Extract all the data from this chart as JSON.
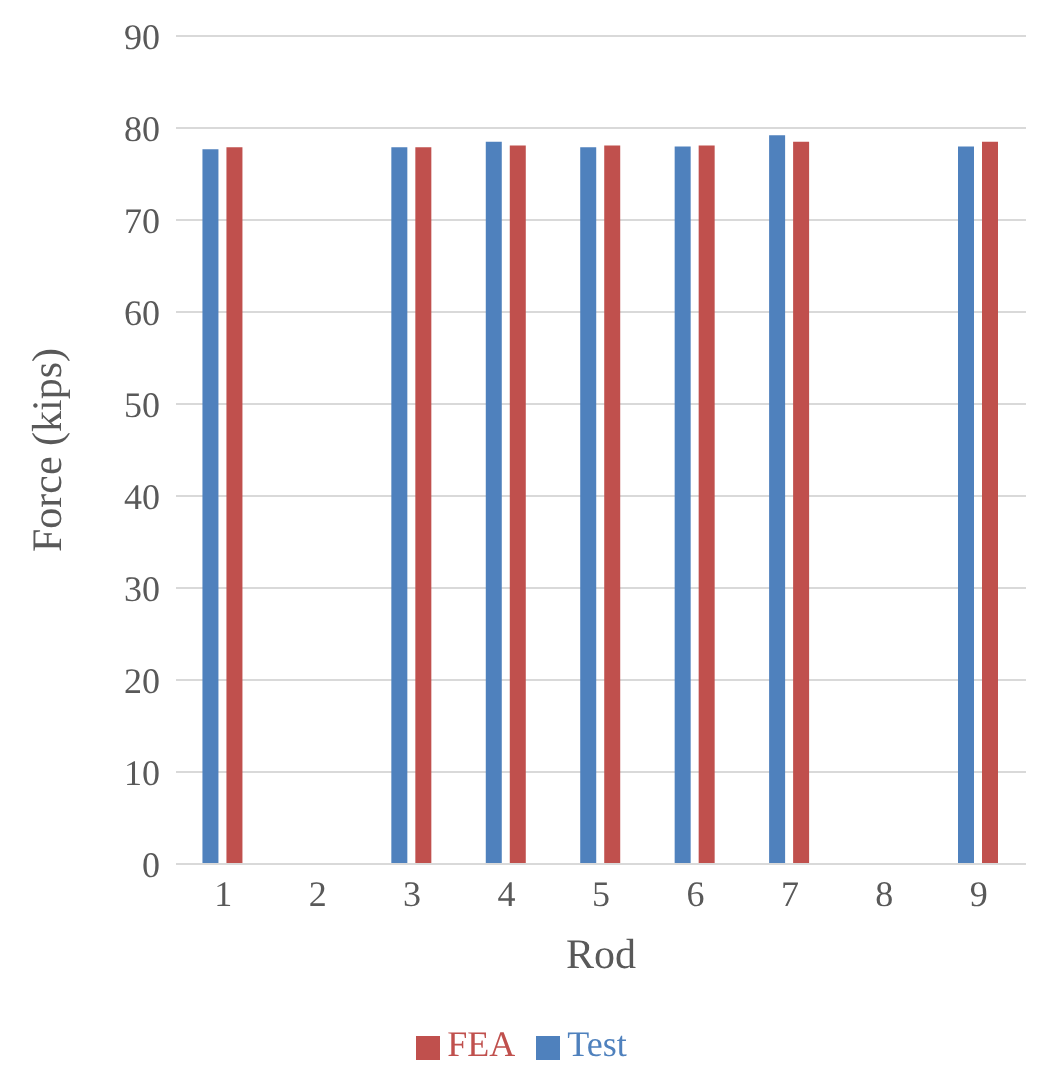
{
  "chart_data": {
    "type": "bar",
    "xlabel": "Rod",
    "ylabel": "Force (kips)",
    "categories": [
      "1",
      "2",
      "3",
      "4",
      "5",
      "6",
      "7",
      "8",
      "9"
    ],
    "series": [
      {
        "name": "Test",
        "color": "#4f81bd",
        "values": [
          77.7,
          null,
          77.9,
          78.5,
          77.9,
          78.0,
          79.2,
          null,
          78.0
        ]
      },
      {
        "name": "FEA",
        "color": "#c0504d",
        "values": [
          77.9,
          null,
          77.9,
          78.1,
          78.1,
          78.1,
          78.5,
          null,
          78.5
        ]
      }
    ],
    "ylim": [
      0,
      90
    ],
    "yticks": [
      0,
      10,
      20,
      30,
      40,
      50,
      60,
      70,
      80,
      90
    ],
    "grid": "y",
    "legend": "bottom"
  }
}
